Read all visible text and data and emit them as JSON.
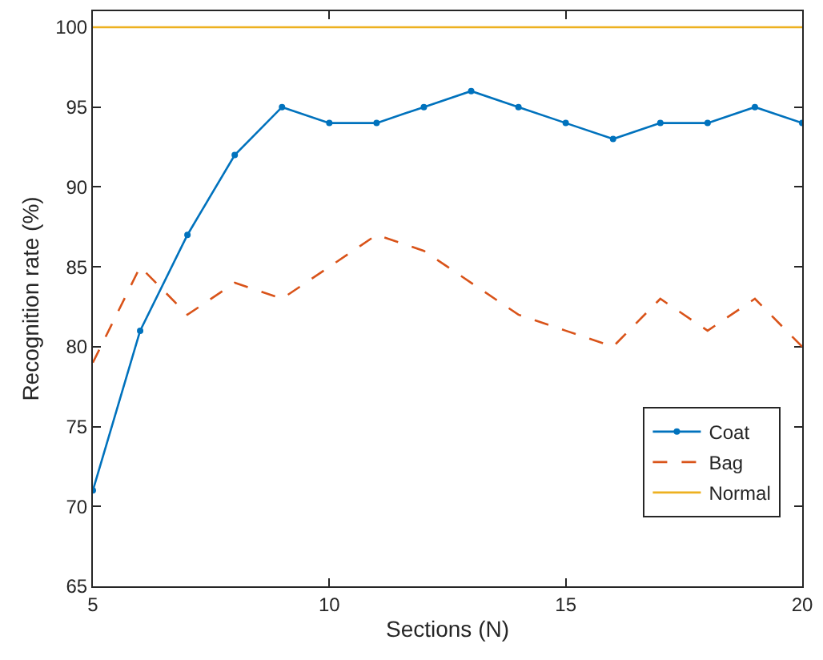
{
  "chart_data": {
    "type": "line",
    "xlabel": "Sections (N)",
    "ylabel": "Recognition rate (%)",
    "x": [
      5,
      6,
      7,
      8,
      9,
      10,
      11,
      12,
      13,
      14,
      15,
      16,
      17,
      18,
      19,
      20
    ],
    "xlim": [
      5,
      20
    ],
    "xticks": [
      5,
      10,
      15,
      20
    ],
    "ylim": [
      65,
      101
    ],
    "yticks": [
      65,
      70,
      75,
      80,
      85,
      90,
      95,
      100
    ],
    "legend": "bottom right",
    "series": [
      {
        "name": "Coat",
        "color": "#0072bd",
        "marker": "circle",
        "line_style": "solid",
        "values": [
          71,
          81,
          87,
          92,
          95,
          94,
          94,
          95,
          96,
          95,
          94,
          93,
          94,
          94,
          95,
          94
        ]
      },
      {
        "name": "Bag",
        "color": "#d95319",
        "marker": "none",
        "line_style": "dashed",
        "values": [
          79,
          85,
          82,
          84,
          83,
          85,
          87,
          86,
          84,
          82,
          81,
          80,
          83,
          81,
          83,
          80
        ]
      },
      {
        "name": "Normal",
        "color": "#edb120",
        "marker": "none",
        "line_style": "solid",
        "values": [
          100,
          100,
          100,
          100,
          100,
          100,
          100,
          100,
          100,
          100,
          100,
          100,
          100,
          100,
          100,
          100
        ]
      }
    ]
  }
}
